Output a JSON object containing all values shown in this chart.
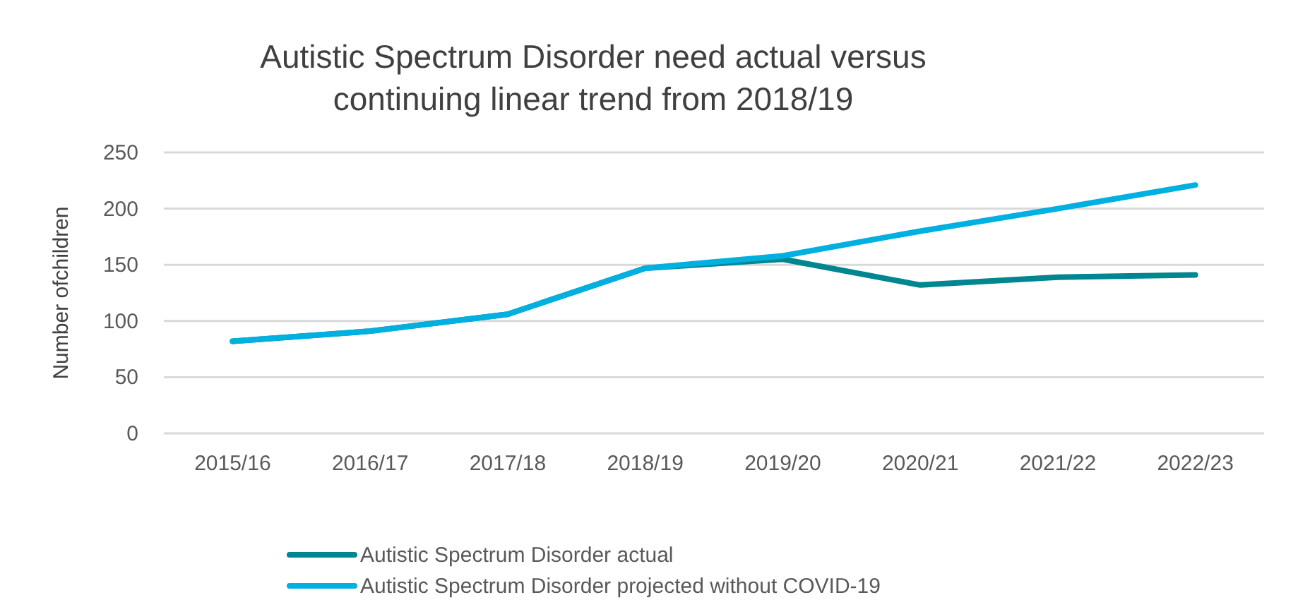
{
  "chart_data": {
    "type": "line",
    "title": "Autistic Spectrum Disorder need actual versus\ncontinuing linear trend from 2018/19",
    "ylabel": "Number ofchildren",
    "categories": [
      "2015/16",
      "2016/17",
      "2017/18",
      "2018/19",
      "2019/20",
      "2020/21",
      "2021/22",
      "2022/23"
    ],
    "series": [
      {
        "name": "Autistic Spectrum Disorder actual",
        "color": "#00868f",
        "values": [
          82,
          91,
          106,
          147,
          155,
          132,
          139,
          141
        ]
      },
      {
        "name": "Autistic Spectrum Disorder projected without COVID-19",
        "color": "#00b0e0",
        "values": [
          82,
          91,
          106,
          147,
          158,
          180,
          200,
          221
        ]
      }
    ],
    "ylim": [
      0,
      250
    ],
    "yticks": [
      0,
      50,
      100,
      150,
      200,
      250
    ],
    "grid": "y",
    "legend": "bottom",
    "marker": "none",
    "line_style": "solid"
  }
}
